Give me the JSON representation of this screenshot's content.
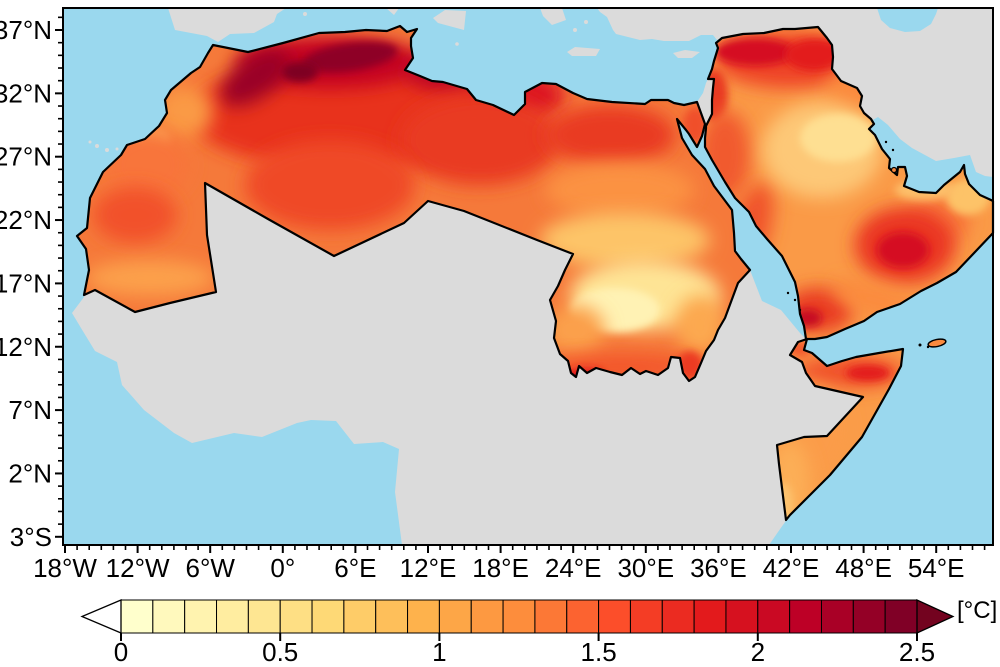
{
  "map": {
    "ocean_color": "#9AD8EE",
    "nonregion_land_color": "#DBDBDB",
    "region_outline_color": "#000000",
    "frame_color": "#000000"
  },
  "axes": {
    "y_ticks": [
      {
        "label": "37°N",
        "value": 37
      },
      {
        "label": "32°N",
        "value": 32
      },
      {
        "label": "27°N",
        "value": 27
      },
      {
        "label": "22°N",
        "value": 22
      },
      {
        "label": "17°N",
        "value": 17
      },
      {
        "label": "12°N",
        "value": 12
      },
      {
        "label": "7°N",
        "value": 7
      },
      {
        "label": "2°N",
        "value": 2
      },
      {
        "label": "3°S",
        "value": -3
      }
    ],
    "x_ticks": [
      {
        "label": "18°W",
        "value": -18
      },
      {
        "label": "12°W",
        "value": -12
      },
      {
        "label": "6°W",
        "value": -6
      },
      {
        "label": "0°",
        "value": 0
      },
      {
        "label": "6°E",
        "value": 6
      },
      {
        "label": "12°E",
        "value": 12
      },
      {
        "label": "18°E",
        "value": 18
      },
      {
        "label": "24°E",
        "value": 24
      },
      {
        "label": "30°E",
        "value": 30
      },
      {
        "label": "36°E",
        "value": 36
      },
      {
        "label": "42°E",
        "value": 42
      },
      {
        "label": "48°E",
        "value": 48
      },
      {
        "label": "54°E",
        "value": 54
      }
    ],
    "minor_tick_step_degrees": 1
  },
  "colorbar": {
    "unit_label": "[°C]",
    "min": 0,
    "max": 2.5,
    "cell_step": 0.1,
    "tick_labels": [
      "0",
      "0.5",
      "1",
      "1.5",
      "2",
      "2.5"
    ],
    "tick_values": [
      0,
      0.5,
      1,
      1.5,
      2,
      2.5
    ],
    "under_arrow_color": "#FFFFFF",
    "over_arrow_color": "#73031F",
    "segments": [
      "#FFFFCC",
      "#FFF9BD",
      "#FFF3AF",
      "#FFEDA0",
      "#FEE692",
      "#FEDF84",
      "#FED976",
      "#FECC68",
      "#FEBF5A",
      "#FEB24C",
      "#FDA647",
      "#FD9941",
      "#FD8D3C",
      "#FC7836",
      "#FC6330",
      "#FC4E2A",
      "#F43D25",
      "#EB2B21",
      "#E31A1C",
      "#D6111F",
      "#CA0923",
      "#BD0026",
      "#A90026",
      "#940026",
      "#800026"
    ]
  }
}
